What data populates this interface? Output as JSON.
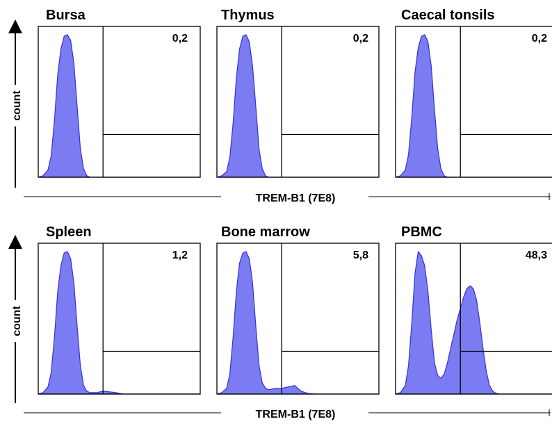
{
  "chart_data": {
    "type": "area",
    "x_label": "TREM-B1 (7E8)",
    "y_label": "count",
    "rows": [
      [
        {
          "title": "Bursa",
          "percent_label": "0,2",
          "x": [
            0,
            0.03,
            0.06,
            0.08,
            0.1,
            0.12,
            0.14,
            0.16,
            0.18,
            0.2,
            0.22,
            0.24,
            0.26,
            0.28,
            0.3,
            0.32,
            0.36,
            0.4,
            0.5,
            0.6,
            0.8,
            1.0
          ],
          "y": [
            0,
            0.01,
            0.05,
            0.15,
            0.4,
            0.72,
            0.9,
            0.99,
            1.0,
            0.96,
            0.8,
            0.5,
            0.2,
            0.06,
            0.01,
            0,
            0,
            0,
            0,
            0,
            0,
            0
          ]
        },
        {
          "title": "Thymus",
          "percent_label": "0,2",
          "x": [
            0,
            0.03,
            0.06,
            0.08,
            0.1,
            0.12,
            0.14,
            0.16,
            0.18,
            0.2,
            0.22,
            0.24,
            0.26,
            0.28,
            0.3,
            0.32,
            0.36,
            0.4,
            0.5,
            0.6,
            0.8,
            1.0
          ],
          "y": [
            0,
            0.01,
            0.04,
            0.14,
            0.38,
            0.7,
            0.9,
            0.99,
            1.0,
            0.95,
            0.78,
            0.5,
            0.2,
            0.06,
            0.01,
            0,
            0,
            0,
            0,
            0,
            0,
            0
          ]
        },
        {
          "title": "Caecal tonsils",
          "percent_label": "0,2",
          "x": [
            0,
            0.03,
            0.06,
            0.08,
            0.1,
            0.12,
            0.14,
            0.16,
            0.18,
            0.2,
            0.22,
            0.24,
            0.26,
            0.28,
            0.3,
            0.32,
            0.36,
            0.4,
            0.5,
            0.6,
            0.8,
            1.0
          ],
          "y": [
            0,
            0.01,
            0.05,
            0.16,
            0.42,
            0.74,
            0.91,
            0.99,
            1.0,
            0.95,
            0.78,
            0.48,
            0.2,
            0.06,
            0.01,
            0,
            0,
            0,
            0,
            0,
            0,
            0
          ]
        }
      ],
      [
        {
          "title": "Spleen",
          "percent_label": "1,2",
          "x": [
            0,
            0.03,
            0.06,
            0.08,
            0.1,
            0.12,
            0.14,
            0.16,
            0.18,
            0.2,
            0.22,
            0.24,
            0.26,
            0.28,
            0.3,
            0.32,
            0.36,
            0.4,
            0.44,
            0.48,
            0.52,
            0.6,
            0.8,
            1.0
          ],
          "y": [
            0,
            0.01,
            0.05,
            0.15,
            0.4,
            0.72,
            0.9,
            0.99,
            1.0,
            0.95,
            0.78,
            0.48,
            0.2,
            0.06,
            0.02,
            0.01,
            0.01,
            0.02,
            0.015,
            0.01,
            0,
            0,
            0,
            0
          ]
        },
        {
          "title": "Bone marrow",
          "percent_label": "5,8",
          "x": [
            0,
            0.03,
            0.06,
            0.08,
            0.1,
            0.12,
            0.14,
            0.16,
            0.18,
            0.2,
            0.22,
            0.24,
            0.26,
            0.28,
            0.3,
            0.32,
            0.36,
            0.4,
            0.44,
            0.48,
            0.5,
            0.52,
            0.56,
            0.6,
            0.8,
            1.0
          ],
          "y": [
            0,
            0.01,
            0.04,
            0.14,
            0.4,
            0.72,
            0.92,
            0.99,
            1.0,
            0.95,
            0.78,
            0.48,
            0.2,
            0.08,
            0.04,
            0.03,
            0.04,
            0.04,
            0.05,
            0.06,
            0.04,
            0.02,
            0.005,
            0,
            0,
            0
          ]
        },
        {
          "title": "PBMC",
          "percent_label": "48,3",
          "x": [
            0,
            0.03,
            0.06,
            0.08,
            0.1,
            0.12,
            0.14,
            0.16,
            0.18,
            0.2,
            0.22,
            0.24,
            0.26,
            0.28,
            0.3,
            0.32,
            0.34,
            0.36,
            0.38,
            0.4,
            0.42,
            0.44,
            0.46,
            0.48,
            0.5,
            0.52,
            0.54,
            0.56,
            0.58,
            0.6,
            0.62,
            0.64,
            0.66,
            0.7,
            0.8,
            1.0
          ],
          "y": [
            0,
            0.01,
            0.06,
            0.2,
            0.5,
            0.85,
            1.0,
            0.97,
            0.9,
            0.72,
            0.45,
            0.22,
            0.13,
            0.11,
            0.14,
            0.22,
            0.32,
            0.42,
            0.52,
            0.6,
            0.68,
            0.74,
            0.76,
            0.74,
            0.66,
            0.5,
            0.32,
            0.16,
            0.06,
            0.02,
            0.005,
            0,
            0,
            0,
            0,
            0
          ]
        }
      ]
    ],
    "gate": {
      "x_start": 0.4,
      "x_end": 1.0,
      "level": 0.3
    },
    "fill_color": "#7b7bf2",
    "edge_color": "#3232d8"
  }
}
